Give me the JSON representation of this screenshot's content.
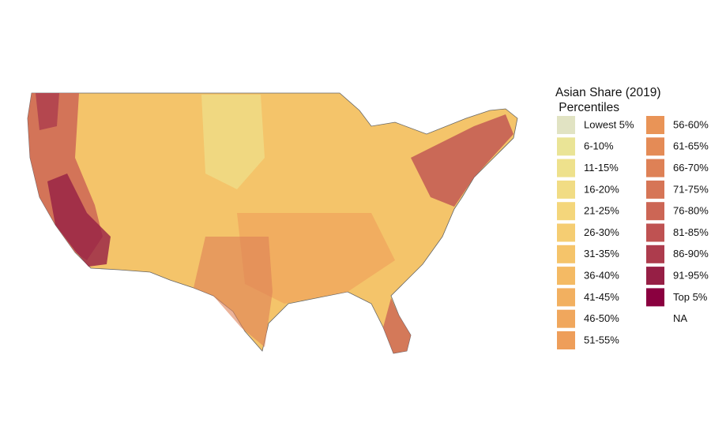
{
  "legend": {
    "title_lines": [
      "Asian Share (2019)",
      " Percentiles"
    ],
    "items": [
      {
        "label": "Lowest 5%",
        "color": "#e1e3c3"
      },
      {
        "label": "6-10%",
        "color": "#eae496"
      },
      {
        "label": "11-15%",
        "color": "#eee18c"
      },
      {
        "label": "16-20%",
        "color": "#f1dc84"
      },
      {
        "label": "21-25%",
        "color": "#f4d67b"
      },
      {
        "label": "26-30%",
        "color": "#f5cd72"
      },
      {
        "label": "31-35%",
        "color": "#f5c46a"
      },
      {
        "label": "36-40%",
        "color": "#f4ba64"
      },
      {
        "label": "41-45%",
        "color": "#f2b060"
      },
      {
        "label": "46-50%",
        "color": "#f0a75d"
      },
      {
        "label": "51-55%",
        "color": "#ee9e5a"
      },
      {
        "label": "56-60%",
        "color": "#e99457"
      },
      {
        "label": "61-65%",
        "color": "#e48b56"
      },
      {
        "label": "66-70%",
        "color": "#de8156"
      },
      {
        "label": "71-75%",
        "color": "#d67556"
      },
      {
        "label": "76-80%",
        "color": "#cc6655"
      },
      {
        "label": "81-85%",
        "color": "#bf5252"
      },
      {
        "label": "86-90%",
        "color": "#ad3c4d"
      },
      {
        "label": "91-95%",
        "color": "#961f45"
      },
      {
        "label": "Top 5%",
        "color": "#8a003f"
      },
      {
        "label": "NA"
      }
    ]
  }
}
